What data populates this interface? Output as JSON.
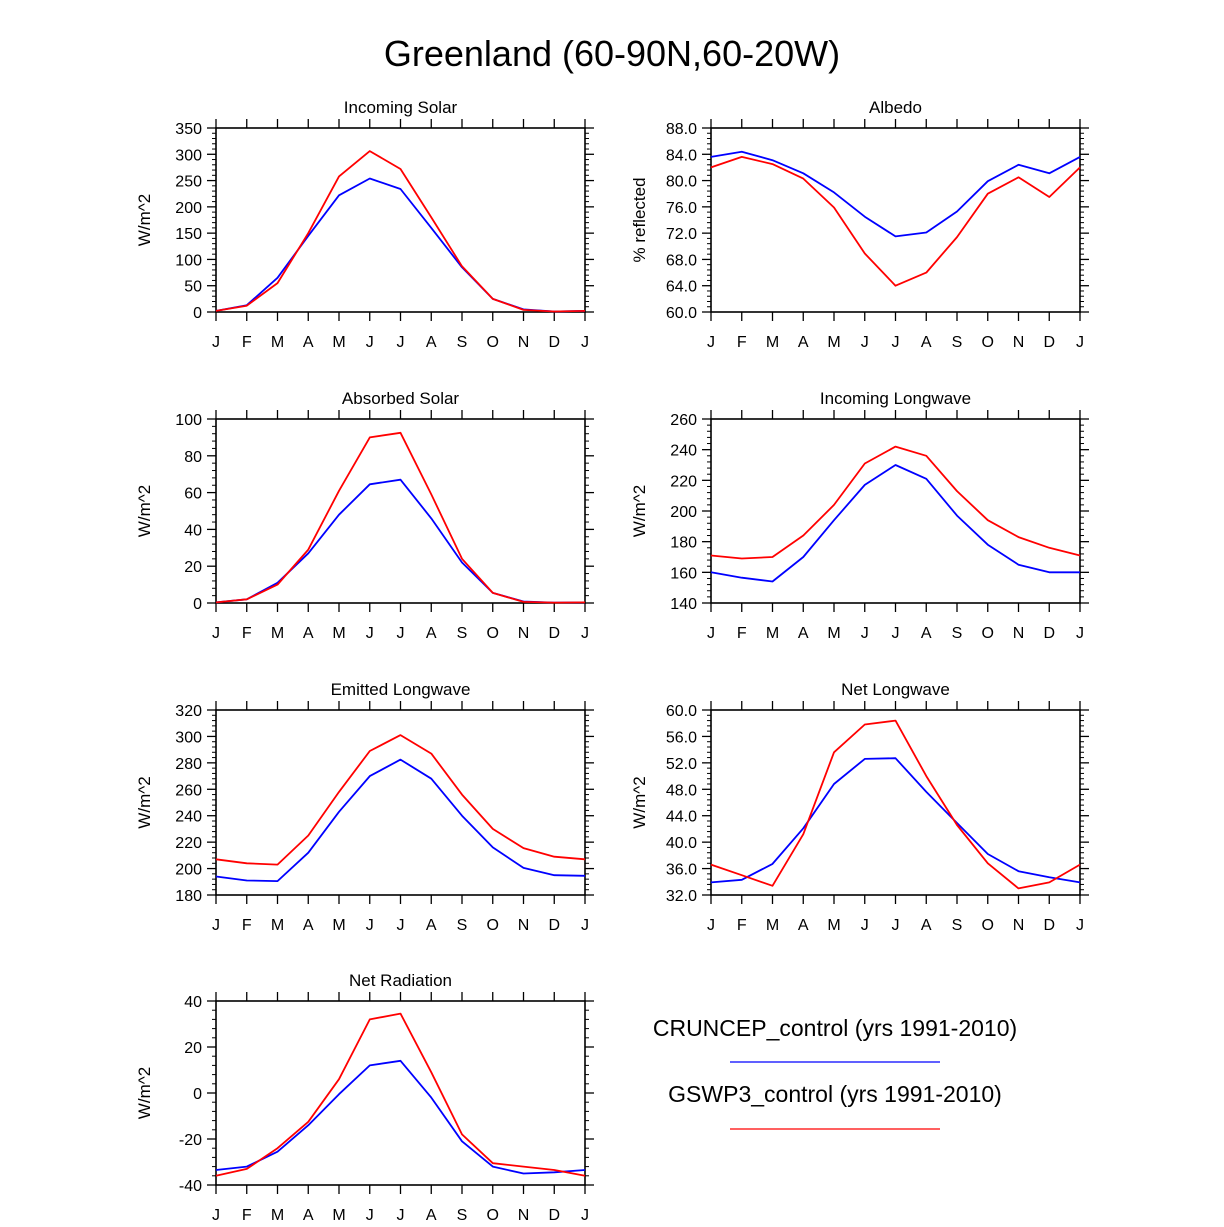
{
  "figure_title": "Greenland (60-90N,60-20W)",
  "colors": {
    "series_1": "#0000ff",
    "series_2": "#ff0000"
  },
  "legend": {
    "entries": [
      {
        "label": "CRUNCEP_control (yrs 1991-2010)",
        "color": "#0000ff"
      },
      {
        "label": "GSWP3_control (yrs 1991-2010)",
        "color": "#ff0000"
      }
    ]
  },
  "chart_data": [
    {
      "type": "line",
      "title": "Incoming Solar",
      "ylabel": "W/m^2",
      "xlabel": "",
      "categories": [
        "J",
        "F",
        "M",
        "A",
        "M",
        "J",
        "J",
        "A",
        "S",
        "O",
        "N",
        "D",
        "J"
      ],
      "ylim": [
        0,
        350
      ],
      "yticks": [
        "0",
        "50",
        "100",
        "150",
        "200",
        "250",
        "300",
        "350"
      ],
      "series": [
        {
          "name": "CRUNCEP_control (yrs 1991-2010)",
          "color": "#0000ff",
          "values": [
            2,
            13,
            65,
            145,
            222,
            254,
            234,
            160,
            85,
            25,
            5,
            1,
            2
          ]
        },
        {
          "name": "GSWP3_control (yrs 1991-2010)",
          "color": "#ff0000",
          "values": [
            2,
            12,
            55,
            150,
            258,
            306,
            272,
            180,
            87,
            25,
            4,
            1,
            2
          ]
        }
      ]
    },
    {
      "type": "line",
      "title": "Albedo",
      "ylabel": "% reflected",
      "xlabel": "",
      "categories": [
        "J",
        "F",
        "M",
        "A",
        "M",
        "J",
        "J",
        "A",
        "S",
        "O",
        "N",
        "D",
        "J"
      ],
      "ylim": [
        60,
        88
      ],
      "yticks": [
        "60.0",
        "64.0",
        "68.0",
        "72.0",
        "76.0",
        "80.0",
        "84.0",
        "88.0"
      ],
      "series": [
        {
          "name": "CRUNCEP_control (yrs 1991-2010)",
          "color": "#0000ff",
          "values": [
            83.6,
            84.4,
            83.1,
            81.1,
            78.2,
            74.5,
            71.5,
            72.1,
            75.3,
            79.9,
            82.4,
            81.1,
            83.6
          ]
        },
        {
          "name": "GSWP3_control (yrs 1991-2010)",
          "color": "#ff0000",
          "values": [
            82.0,
            83.6,
            82.5,
            80.3,
            75.9,
            68.9,
            64.0,
            66.0,
            71.4,
            78.0,
            80.5,
            77.5,
            82.0
          ]
        }
      ]
    },
    {
      "type": "line",
      "title": "Absorbed Solar",
      "ylabel": "W/m^2",
      "xlabel": "",
      "categories": [
        "J",
        "F",
        "M",
        "A",
        "M",
        "J",
        "J",
        "A",
        "S",
        "O",
        "N",
        "D",
        "J"
      ],
      "ylim": [
        0,
        100
      ],
      "yticks": [
        "0",
        "20",
        "40",
        "60",
        "80",
        "100"
      ],
      "series": [
        {
          "name": "CRUNCEP_control (yrs 1991-2010)",
          "color": "#0000ff",
          "values": [
            0.3,
            2,
            11,
            27,
            48,
            64.5,
            67,
            46,
            22,
            5.5,
            0.8,
            0.2,
            0.3
          ]
        },
        {
          "name": "GSWP3_control (yrs 1991-2010)",
          "color": "#ff0000",
          "values": [
            0.3,
            2,
            10,
            29,
            61,
            90,
            92.5,
            59,
            24,
            5.5,
            0.6,
            0.2,
            0.3
          ]
        }
      ]
    },
    {
      "type": "line",
      "title": "Incoming Longwave",
      "ylabel": "W/m^2",
      "xlabel": "",
      "categories": [
        "J",
        "F",
        "M",
        "A",
        "M",
        "J",
        "J",
        "A",
        "S",
        "O",
        "N",
        "D",
        "J"
      ],
      "ylim": [
        140,
        260
      ],
      "yticks": [
        "140",
        "160",
        "180",
        "200",
        "220",
        "240",
        "260"
      ],
      "series": [
        {
          "name": "CRUNCEP_control (yrs 1991-2010)",
          "color": "#0000ff",
          "values": [
            160,
            156.5,
            154,
            170,
            194,
            217,
            230,
            221,
            197,
            178,
            165,
            160,
            160
          ]
        },
        {
          "name": "GSWP3_control (yrs 1991-2010)",
          "color": "#ff0000",
          "values": [
            171,
            169,
            170,
            184,
            204,
            231,
            242,
            236,
            213,
            194,
            183,
            176,
            171
          ]
        }
      ]
    },
    {
      "type": "line",
      "title": "Emitted Longwave",
      "ylabel": "W/m^2",
      "xlabel": "",
      "categories": [
        "J",
        "F",
        "M",
        "A",
        "M",
        "J",
        "J",
        "A",
        "S",
        "O",
        "N",
        "D",
        "J"
      ],
      "ylim": [
        180,
        320
      ],
      "yticks": [
        "180",
        "200",
        "220",
        "240",
        "260",
        "280",
        "300",
        "320"
      ],
      "series": [
        {
          "name": "CRUNCEP_control (yrs 1991-2010)",
          "color": "#0000ff",
          "values": [
            194,
            191,
            190.5,
            212,
            243,
            270,
            282.5,
            268,
            240,
            216,
            200.5,
            195,
            194.5
          ]
        },
        {
          "name": "GSWP3_control (yrs 1991-2010)",
          "color": "#ff0000",
          "values": [
            207,
            204,
            203,
            225,
            258,
            289,
            301,
            287,
            256,
            230,
            215.5,
            209,
            207
          ]
        }
      ]
    },
    {
      "type": "line",
      "title": "Net Longwave",
      "ylabel": "W/m^2",
      "xlabel": "",
      "categories": [
        "J",
        "F",
        "M",
        "A",
        "M",
        "J",
        "J",
        "A",
        "S",
        "O",
        "N",
        "D",
        "J"
      ],
      "ylim": [
        32,
        60
      ],
      "yticks": [
        "32.0",
        "36.0",
        "40.0",
        "44.0",
        "48.0",
        "52.0",
        "56.0",
        "60.0"
      ],
      "series": [
        {
          "name": "CRUNCEP_control (yrs 1991-2010)",
          "color": "#0000ff",
          "values": [
            33.9,
            34.3,
            36.7,
            42.1,
            48.8,
            52.6,
            52.7,
            47.6,
            42.9,
            38.2,
            35.6,
            34.7,
            33.9
          ]
        },
        {
          "name": "GSWP3_control (yrs 1991-2010)",
          "color": "#ff0000",
          "values": [
            36.6,
            35.0,
            33.4,
            41.2,
            53.6,
            57.8,
            58.4,
            50.0,
            42.6,
            36.8,
            33.0,
            33.9,
            36.6
          ]
        }
      ]
    },
    {
      "type": "line",
      "title": "Net Radiation",
      "ylabel": "W/m^2",
      "xlabel": "",
      "categories": [
        "J",
        "F",
        "M",
        "A",
        "M",
        "J",
        "J",
        "A",
        "S",
        "O",
        "N",
        "D",
        "J"
      ],
      "ylim": [
        -40,
        40
      ],
      "yticks": [
        "-40",
        "-20",
        "0",
        "20",
        "40"
      ],
      "series": [
        {
          "name": "CRUNCEP_control (yrs 1991-2010)",
          "color": "#0000ff",
          "values": [
            -33.5,
            -32,
            -25.5,
            -14,
            -0.5,
            12,
            14,
            -2,
            -21,
            -32,
            -35,
            -34.5,
            -33.5
          ]
        },
        {
          "name": "GSWP3_control (yrs 1991-2010)",
          "color": "#ff0000",
          "values": [
            -36,
            -33,
            -24,
            -12.5,
            6,
            32,
            34.5,
            9,
            -18,
            -30.5,
            -32,
            -33.5,
            -36
          ]
        }
      ]
    }
  ]
}
